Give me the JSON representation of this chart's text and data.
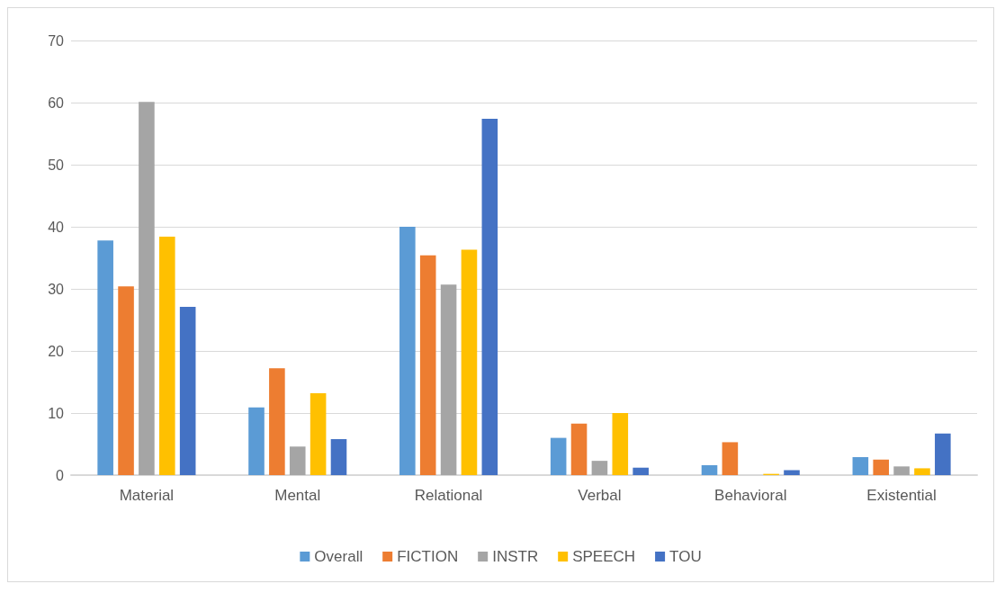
{
  "chart_data": {
    "type": "bar",
    "categories": [
      "Material",
      "Mental",
      "Relational",
      "Verbal",
      "Behavioral",
      "Existential"
    ],
    "series": [
      {
        "name": "Overall",
        "color": "#5b9bd5",
        "values": [
          37.8,
          10.9,
          40.0,
          6.0,
          1.6,
          2.9
        ]
      },
      {
        "name": "FICTION",
        "color": "#ed7d31",
        "values": [
          30.4,
          17.2,
          35.4,
          8.3,
          5.3,
          2.5
        ]
      },
      {
        "name": "INSTR",
        "color": "#a5a5a5",
        "values": [
          60.1,
          4.6,
          30.7,
          2.3,
          0,
          1.4
        ]
      },
      {
        "name": "SPEECH",
        "color": "#ffc000",
        "values": [
          38.4,
          13.2,
          36.3,
          10.0,
          0.2,
          1.1
        ]
      },
      {
        "name": "TOU",
        "color": "#4472c4",
        "values": [
          27.1,
          5.8,
          57.4,
          1.2,
          0.8,
          6.7
        ]
      }
    ],
    "ylim": [
      0,
      70
    ],
    "yticks": [
      0,
      10,
      20,
      30,
      40,
      50,
      60,
      70
    ],
    "grid": "y",
    "legend": "bottom"
  }
}
